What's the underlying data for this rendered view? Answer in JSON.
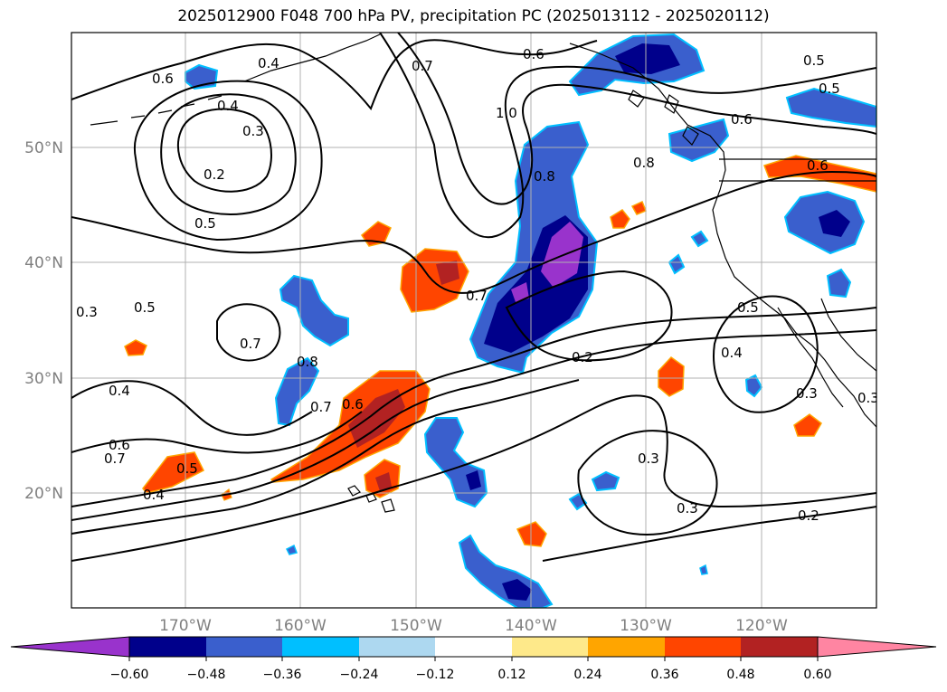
{
  "title": "2025012900 F048 700 hPa PV, precipitation PC (2025013112 - 2025020112)",
  "latitude_labels": [
    "50°N",
    "40°N",
    "30°N",
    "20°N"
  ],
  "longitude_labels": [
    "170°W",
    "160°W",
    "150°W",
    "140°W",
    "130°W",
    "120°W"
  ],
  "pv_contour_labels": [
    "0.6",
    "0.4",
    "0.4",
    "0.3",
    "0.2",
    "0.5",
    "0.7",
    "1.0",
    "0.8",
    "0.6",
    "0.6",
    "0.5",
    "0.5",
    "0.8",
    "0.6",
    "0.3",
    "0.5",
    "0.7",
    "0.8",
    "0.7",
    "0.6",
    "0.3",
    "0.4",
    "0.6",
    "0.7",
    "0.5",
    "0.4",
    "0.7",
    "0.2",
    "0.5",
    "0.4",
    "0.3",
    "0.3",
    "0.3",
    "0.2"
  ],
  "colorbar": {
    "tick_labels": [
      "−0.60",
      "−0.48",
      "−0.36",
      "−0.24",
      "−0.12",
      "0.12",
      "0.24",
      "0.36",
      "0.48",
      "0.60"
    ],
    "colors": [
      "#9933cc",
      "#00008b",
      "#3a5fcd",
      "#00bfff",
      "#add8f0",
      "#ffffff",
      "#fee98a",
      "#ffa500",
      "#ff4500",
      "#b22222",
      "#ff85a2"
    ]
  }
}
